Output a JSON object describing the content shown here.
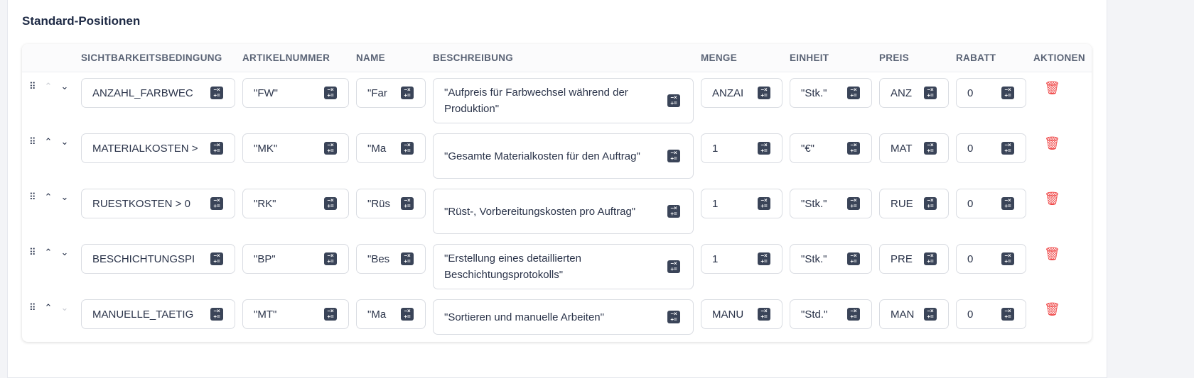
{
  "title": "Standard-Positionen",
  "headers": [
    "",
    "SICHTBARKEITSBEDINGUNG",
    "ARTIKELNUMMER",
    "NAME",
    "BESCHREIBUNG",
    "MENGE",
    "EINHEIT",
    "PREIS",
    "RABATT",
    "AKTIONEN"
  ],
  "colors": {
    "delete": "#ef4444",
    "icon": "#3a4458"
  },
  "rows": [
    {
      "condition": "ANZAHL_FARBWEC",
      "article": "\"FW\"",
      "name": "\"Far",
      "description": "\"Aufpreis für Farbwechsel während der Produktion\"",
      "quantity": "ANZAI",
      "unit": "\"Stk.\"",
      "price": "ANZ",
      "discount": "0",
      "up_enabled": false,
      "down_enabled": true
    },
    {
      "condition": "MATERIALKOSTEN >",
      "article": "\"MK\"",
      "name": "\"Ma",
      "description": "\"Gesamte Materialkosten für den Auftrag\"",
      "quantity": "1",
      "unit": "\"€\"",
      "price": "MAT",
      "discount": "0",
      "up_enabled": true,
      "down_enabled": true
    },
    {
      "condition": "RUESTKOSTEN > 0",
      "article": "\"RK\"",
      "name": "\"Rüs",
      "description": "\"Rüst-, Vorbereitungskosten pro Auftrag\"",
      "quantity": "1",
      "unit": "\"Stk.\"",
      "price": "RUE",
      "discount": "0",
      "up_enabled": true,
      "down_enabled": true
    },
    {
      "condition": "BESCHICHTUNGSPI",
      "article": "\"BP\"",
      "name": "\"Bes",
      "description": "\"Erstellung eines detaillierten Beschichtungsprotokolls\"",
      "quantity": "1",
      "unit": "\"Stk.\"",
      "price": "PRE",
      "discount": "0",
      "up_enabled": true,
      "down_enabled": true
    },
    {
      "condition": "MANUELLE_TAETIG",
      "article": "\"MT\"",
      "name": "\"Ma",
      "description": "\"Sortieren und manuelle Arbeiten\"",
      "quantity": "MANU",
      "unit": "\"Std.\"",
      "price": "MAN",
      "discount": "0",
      "up_enabled": true,
      "down_enabled": false
    }
  ]
}
